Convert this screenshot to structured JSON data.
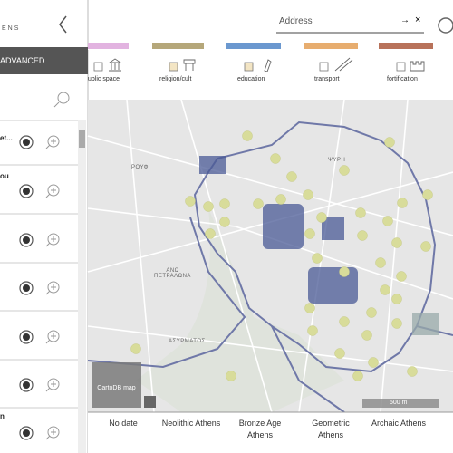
{
  "sidebar": {
    "logo": "ENS",
    "tab": "ADVANCED",
    "items": [
      "et...",
      "ou",
      "n"
    ]
  },
  "search": {
    "placeholder": "Address",
    "go": "→",
    "clear": "×"
  },
  "categories": [
    "ublic space",
    "religion/cult",
    "education",
    "transport",
    "fortification"
  ],
  "map": {
    "labels": [
      "ΡΟΥΦ",
      "ΨΥΡΗ",
      "ΑΝΩ ΠΕΤΡΑΛΩΝΑ",
      "ΑΣΥΡΜΑΤΟΣ"
    ],
    "attribution": "CartoDB map",
    "scale": "500 m"
  },
  "timeline": [
    "No date",
    "Neolithic Athens",
    "Bronze Age Athens",
    "Geometric Athens",
    "Archaic Athens"
  ]
}
